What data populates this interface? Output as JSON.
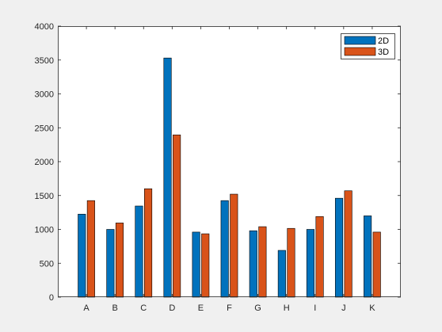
{
  "chart_data": {
    "type": "bar",
    "categories": [
      "A",
      "B",
      "C",
      "D",
      "E",
      "F",
      "G",
      "H",
      "I",
      "J",
      "K"
    ],
    "series": [
      {
        "name": "2D",
        "color": "#0072BD",
        "values": [
          1225,
          1000,
          1345,
          3530,
          960,
          1425,
          980,
          690,
          1000,
          1460,
          1200
        ]
      },
      {
        "name": "3D",
        "color": "#D95319",
        "values": [
          1425,
          1095,
          1600,
          2395,
          935,
          1520,
          1040,
          1015,
          1190,
          1570,
          960
        ]
      }
    ],
    "ylim": [
      0,
      4000
    ],
    "yticks": [
      0,
      500,
      1000,
      1500,
      2000,
      2500,
      3000,
      3500,
      4000
    ],
    "grid": false,
    "legend_position": "top-right"
  }
}
